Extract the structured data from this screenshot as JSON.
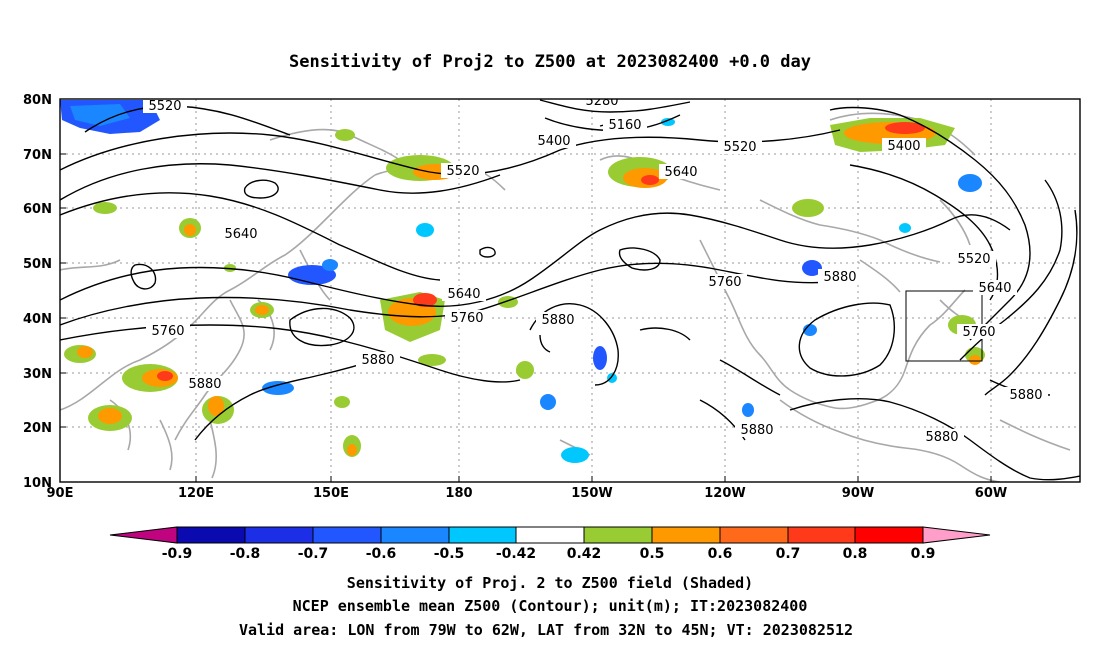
{
  "title": "Sensitivity of Proj2 to Z500 at 2023082400 +0.0 day",
  "lon_ticks": [
    "90E",
    "120E",
    "150E",
    "180",
    "150W",
    "120W",
    "90W",
    "60W"
  ],
  "lat_ticks": [
    "10N",
    "20N",
    "30N",
    "40N",
    "50N",
    "60N",
    "70N",
    "80N"
  ],
  "contour_labels": [
    "5520",
    "5280",
    "5160",
    "5400",
    "5520",
    "5640",
    "5520",
    "5400",
    "5640",
    "5640",
    "5760",
    "5880",
    "5760",
    "5880",
    "5520",
    "5640",
    "5760",
    "5760",
    "5880",
    "5880",
    "5880",
    "5880",
    "5880"
  ],
  "colorbar": {
    "labels": [
      "-0.9",
      "-0.8",
      "-0.7",
      "-0.6",
      "-0.5",
      "-0.42",
      "0.42",
      "0.5",
      "0.6",
      "0.7",
      "0.8",
      "0.9"
    ],
    "colors": [
      "#c0047f",
      "#0a0ab0",
      "#1c2ee6",
      "#2257ff",
      "#1a86ff",
      "#00c8ff",
      "#ffffff",
      "#99cc33",
      "#ff9900",
      "#ff6a1a",
      "#ff3a1a",
      "#ff0000",
      "#ff9ec9"
    ]
  },
  "caption": [
    "Sensitivity of Proj. 2 to Z500 field (Shaded)",
    "NCEP ensemble mean Z500 (Contour); unit(m); IT:2023082400",
    "Valid area: LON from 79W to 62W, LAT from 32N to 45N; VT: 2023082512"
  ],
  "shading_colors": {
    "blue_dark": "#2257ff",
    "blue": "#1a86ff",
    "cyan": "#00c8ff",
    "green": "#99cc33",
    "orange": "#ff9900",
    "red": "#ff3a1a"
  }
}
